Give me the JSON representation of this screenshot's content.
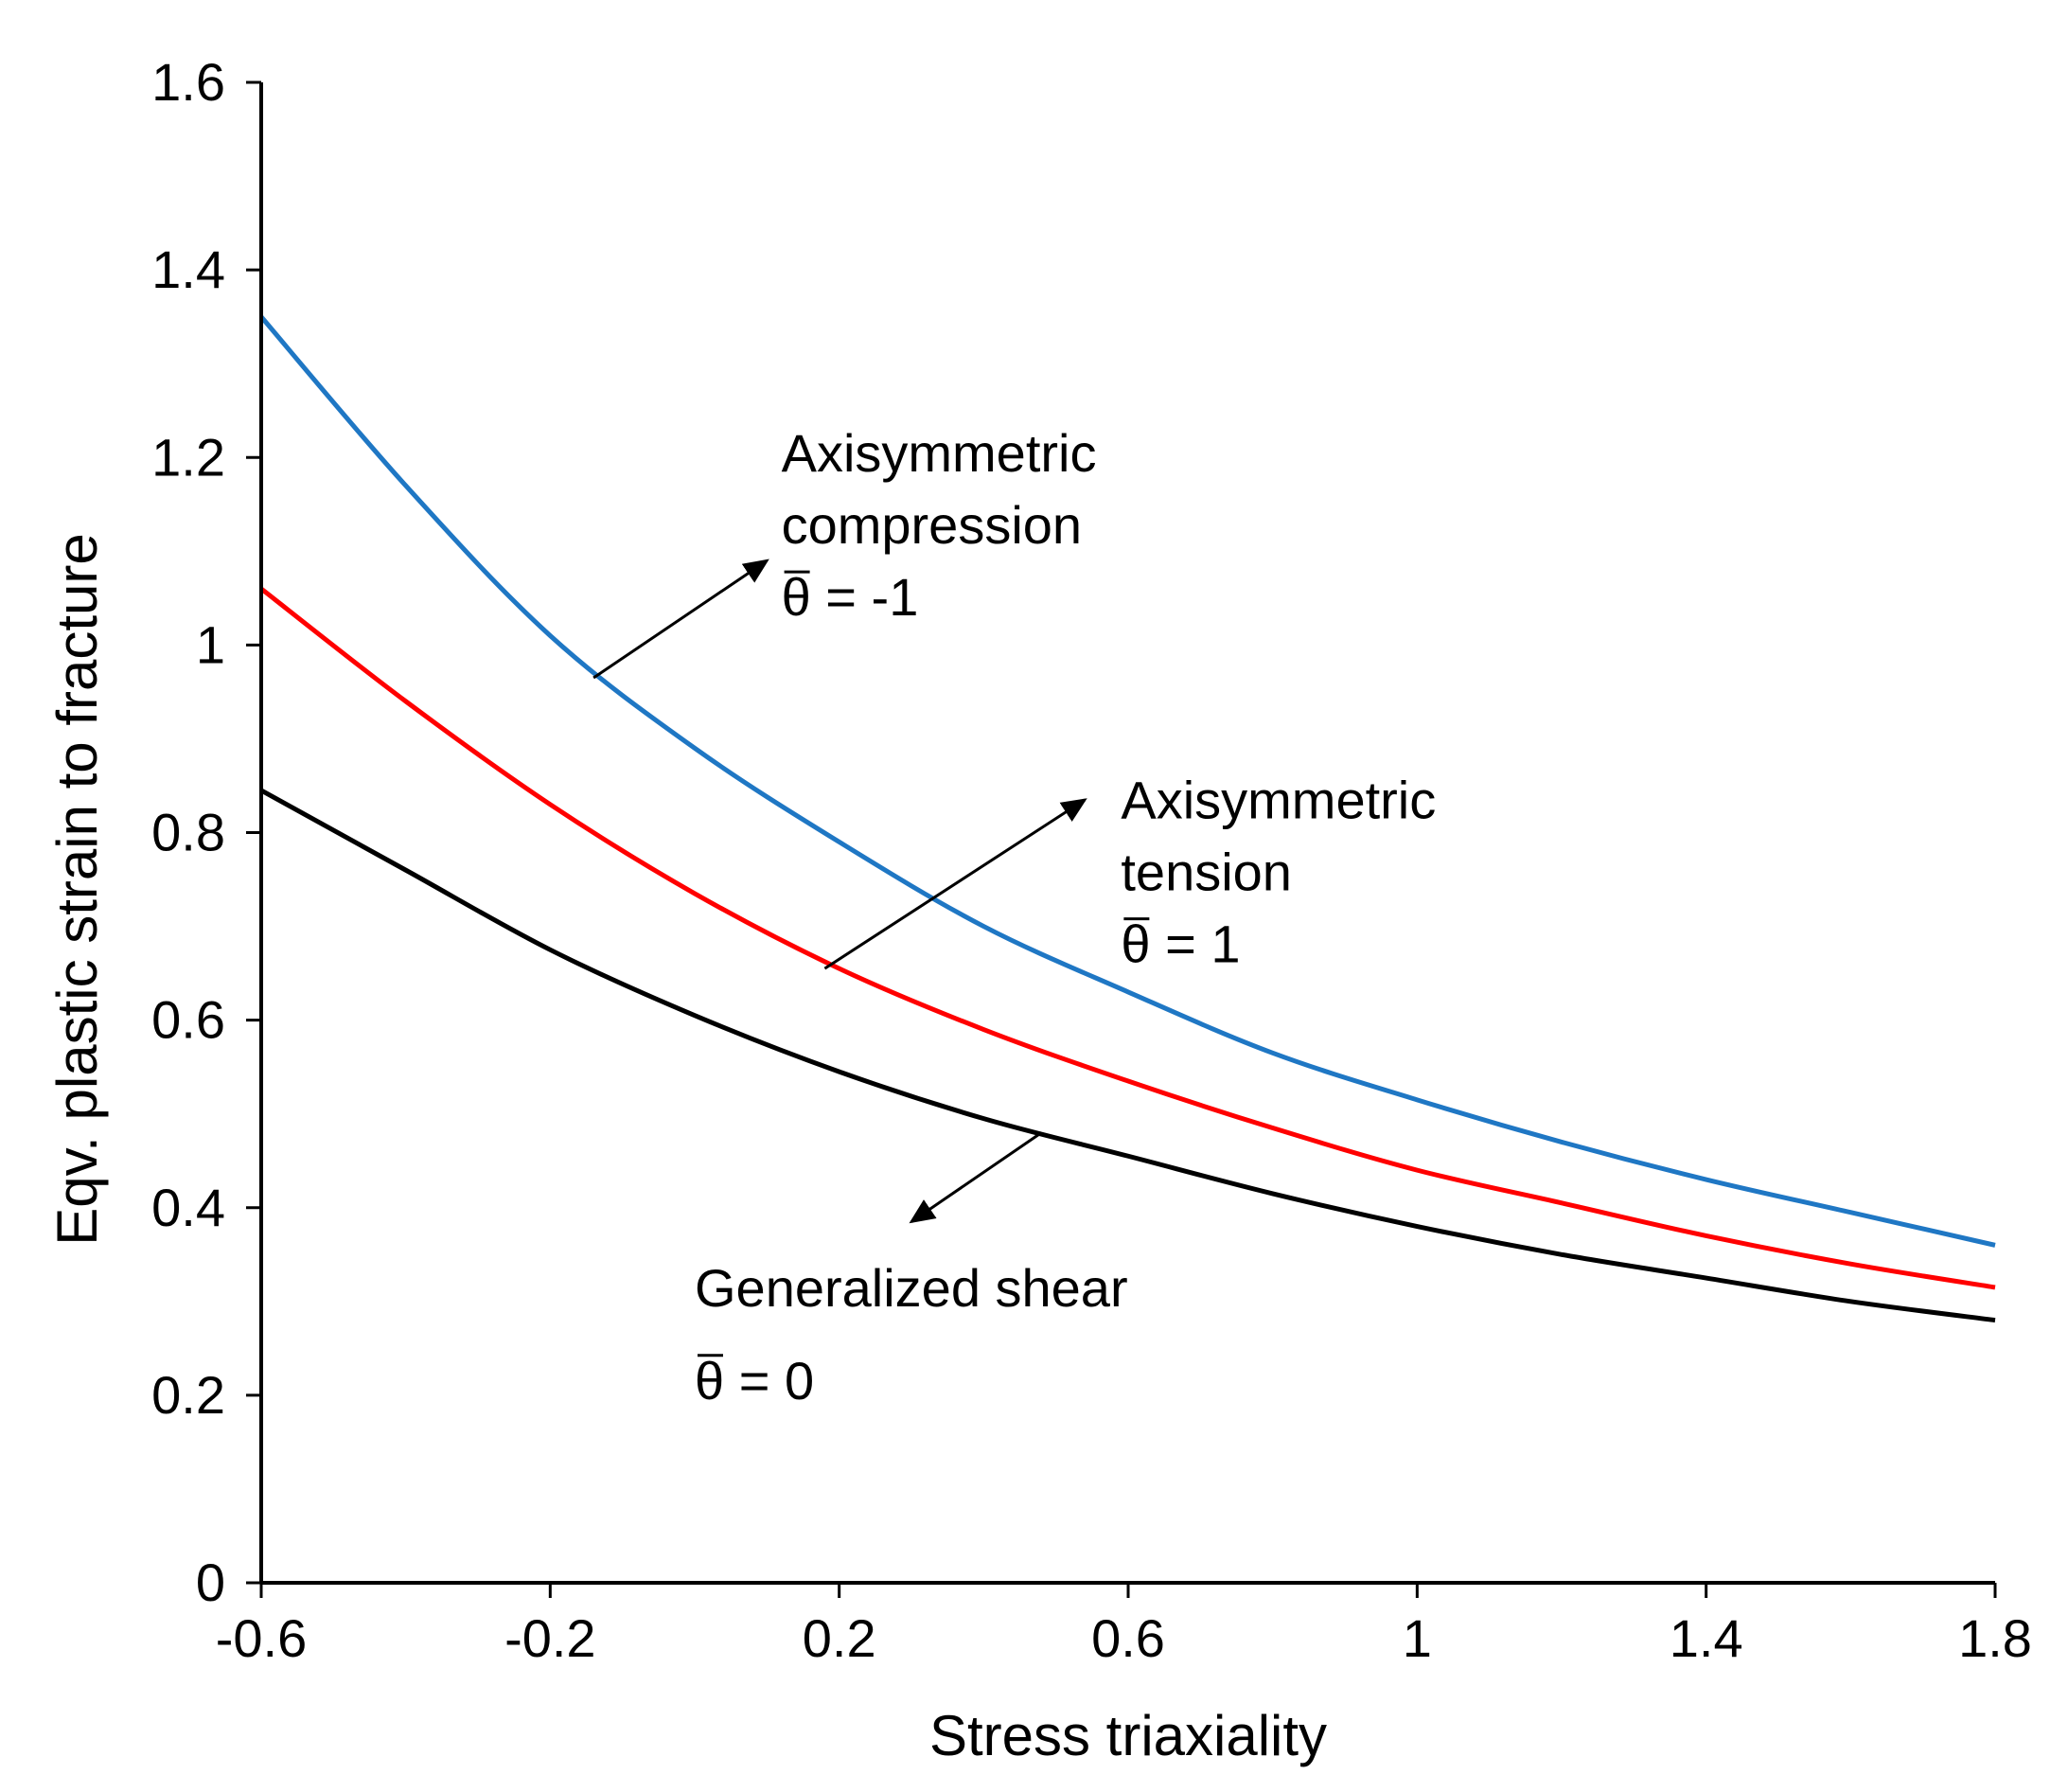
{
  "chart_data": {
    "type": "line",
    "title": "",
    "xlabel": "Stress triaxiality",
    "ylabel": "Eqv. plastic strain to fracture",
    "xlim": [
      -0.6,
      1.8
    ],
    "ylim": [
      0,
      1.6
    ],
    "xticks": [
      -0.6,
      -0.2,
      0.2,
      0.6,
      1,
      1.4,
      1.8
    ],
    "xtick_labels": [
      "-0.6",
      "-0.2",
      "0.2",
      "0.6",
      "1",
      "1.4",
      "1.8"
    ],
    "yticks": [
      0,
      0.2,
      0.4,
      0.6,
      0.8,
      1,
      1.2,
      1.4,
      1.6
    ],
    "ytick_labels": [
      "0",
      "0.2",
      "0.4",
      "0.6",
      "0.8",
      "1",
      "1.2",
      "1.4",
      "1.6"
    ],
    "grid": false,
    "legend": "none",
    "x": [
      -0.6,
      -0.4,
      -0.2,
      0.0,
      0.2,
      0.4,
      0.6,
      0.8,
      1.0,
      1.2,
      1.4,
      1.6,
      1.8
    ],
    "series": [
      {
        "color": "#1f77c4",
        "values": [
          1.35,
          1.17,
          1.01,
          0.89,
          0.79,
          0.7,
          0.63,
          0.565,
          0.515,
          0.47,
          0.43,
          0.395,
          0.36
        ]
      },
      {
        "color": "#ff0000",
        "values": [
          1.06,
          0.94,
          0.83,
          0.735,
          0.655,
          0.59,
          0.535,
          0.485,
          0.44,
          0.405,
          0.37,
          0.34,
          0.315
        ]
      },
      {
        "color": "#000000",
        "values": [
          0.845,
          0.76,
          0.675,
          0.605,
          0.545,
          0.495,
          0.455,
          0.415,
          0.38,
          0.35,
          0.325,
          0.3,
          0.28
        ]
      }
    ],
    "annotations": [
      {
        "lines": [
          "Axisymmetric",
          "compression",
          "θ = -1"
        ],
        "text_at": [
          0.12,
          1.185
        ],
        "arrow_from": [
          -0.14,
          0.965
        ],
        "arrow_to": [
          0.1,
          1.09
        ],
        "overbar_line": 2
      },
      {
        "lines": [
          "Axisymmetric",
          "tension",
          "θ = 1"
        ],
        "text_at": [
          0.59,
          0.815
        ],
        "arrow_from": [
          0.18,
          0.655
        ],
        "arrow_to": [
          0.54,
          0.835
        ],
        "overbar_line": 2
      },
      {
        "lines": [
          "Generalized  shear",
          "θ = 0"
        ],
        "text_at": [
          0.0,
          0.295
        ],
        "arrow_from": [
          0.48,
          0.48
        ],
        "arrow_to": [
          0.3,
          0.385
        ],
        "overbar_line": 1
      }
    ]
  }
}
